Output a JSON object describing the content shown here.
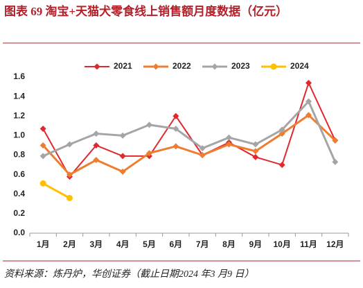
{
  "chart_data": {
    "type": "line",
    "title": "图表 69   淘宝+天猫犬零食线上销售额月度数据（亿元）",
    "source": "资料来源：炼丹炉，华创证券（截止日期2024 年3 月9 日）",
    "categories": [
      "1月",
      "2月",
      "3月",
      "4月",
      "5月",
      "6月",
      "7月",
      "8月",
      "9月",
      "10月",
      "11月",
      "12月"
    ],
    "series": [
      {
        "name": "2021",
        "color": "#e0282e",
        "marker": "diamond",
        "values": [
          1.07,
          0.58,
          0.9,
          0.79,
          0.79,
          1.2,
          0.8,
          0.93,
          0.78,
          0.7,
          1.54,
          0.95
        ]
      },
      {
        "name": "2022",
        "color": "#ed7d31",
        "marker": "diamond",
        "values": [
          0.9,
          0.6,
          0.75,
          0.63,
          0.82,
          0.89,
          0.8,
          0.91,
          0.84,
          1.02,
          1.21,
          0.95
        ]
      },
      {
        "name": "2023",
        "color": "#a5a5a5",
        "marker": "diamond",
        "values": [
          0.79,
          0.91,
          1.02,
          1.0,
          1.11,
          1.07,
          0.87,
          0.98,
          0.91,
          1.06,
          1.35,
          0.73
        ]
      },
      {
        "name": "2024",
        "color": "#ffc000",
        "marker": "circle",
        "values": [
          0.51,
          0.36,
          null,
          null,
          null,
          null,
          null,
          null,
          null,
          null,
          null,
          null
        ]
      }
    ],
    "ylim": [
      0,
      1.6
    ],
    "yticks": [
      {
        "value": 0,
        "label": "0.0"
      },
      0.2,
      0.4,
      0.6,
      0.8,
      {
        "value": 1,
        "label": "1.0"
      },
      1.2,
      1.4,
      1.6
    ],
    "legend": "top"
  }
}
